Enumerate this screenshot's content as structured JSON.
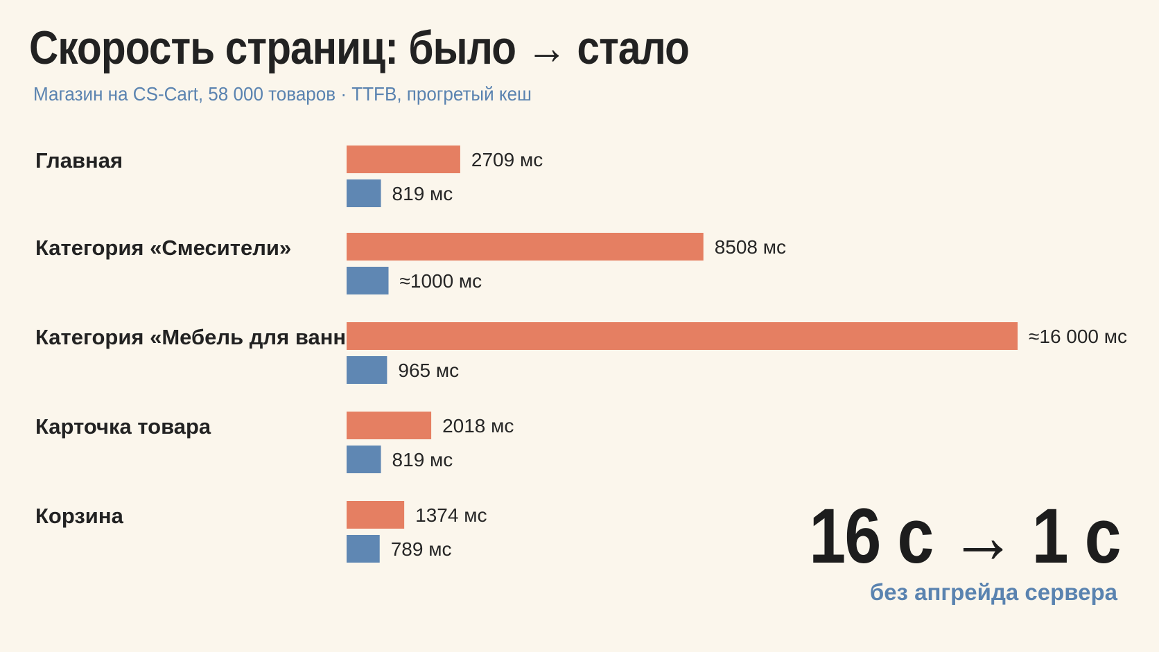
{
  "header": {
    "title": "Скорость страниц: было → стало",
    "subtitle": "Магазин на CS-Cart, 58 000 товаров · TTFB, прогретый кеш"
  },
  "highlight": {
    "result": "16 с → 1 с",
    "note": "без апгрейда сервера"
  },
  "colors": {
    "before": "#e57f62",
    "after": "#5f87b3",
    "background": "#fbf6ec",
    "accent_text": "#5a83b0"
  },
  "chart_data": {
    "type": "bar",
    "orientation": "horizontal",
    "categories": [
      "Главная",
      "Категория «Смесители»",
      "Категория «Мебель для ванной»",
      "Карточка товара",
      "Корзина"
    ],
    "series": [
      {
        "values": [
          2709,
          8508,
          16000,
          2018,
          1374
        ],
        "labels": [
          "2709 мс",
          "8508 мс",
          "≈16 000 мс",
          "2018 мс",
          "1374 мс"
        ]
      },
      {
        "values": [
          819,
          1000,
          965,
          819,
          789
        ],
        "labels": [
          "819 мс",
          "≈1000 мс",
          "965 мс",
          "819 мс",
          "789 мс"
        ]
      }
    ],
    "xlim": [
      0,
      16000
    ],
    "grid": false,
    "legend": "none"
  }
}
